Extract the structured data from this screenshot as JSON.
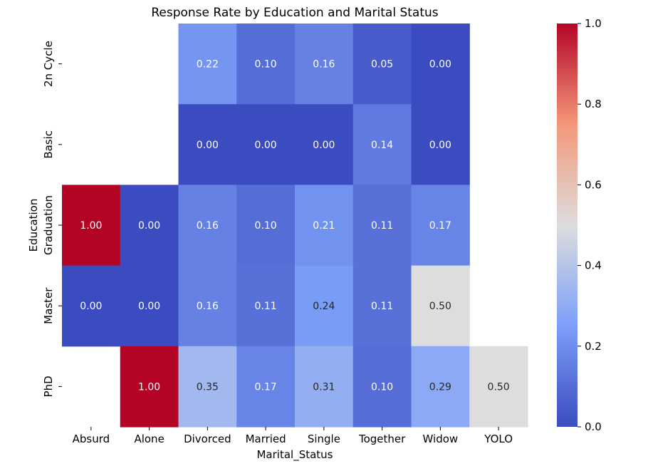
{
  "chart_data": {
    "type": "heatmap",
    "title": "Response Rate by Education and Marital Status",
    "xlabel": "Marital_Status",
    "ylabel": "Education",
    "x_categories": [
      "Absurd",
      "Alone",
      "Divorced",
      "Married",
      "Single",
      "Together",
      "Widow",
      "YOLO"
    ],
    "y_categories": [
      "2n Cycle",
      "Basic",
      "Graduation",
      "Master",
      "PhD"
    ],
    "values": [
      [
        null,
        null,
        0.22,
        0.1,
        0.16,
        0.05,
        0.0,
        null
      ],
      [
        null,
        null,
        0.0,
        0.0,
        0.0,
        0.14,
        0.0,
        null
      ],
      [
        1.0,
        0.0,
        0.16,
        0.1,
        0.21,
        0.11,
        0.17,
        null
      ],
      [
        0.0,
        0.0,
        0.16,
        0.11,
        0.24,
        0.11,
        0.5,
        null
      ],
      [
        null,
        1.0,
        0.35,
        0.17,
        0.31,
        0.1,
        0.29,
        0.5
      ]
    ],
    "value_format": "0.00",
    "colormap": "coolwarm",
    "vmin": 0.0,
    "vmax": 1.0,
    "colorbar_ticks": [
      "0.0",
      "0.2",
      "0.4",
      "0.6",
      "0.8",
      "1.0"
    ],
    "colorbar_tick_values": [
      0.0,
      0.2,
      0.4,
      0.6,
      0.8,
      1.0
    ],
    "legend_position": "right",
    "grid": false
  }
}
